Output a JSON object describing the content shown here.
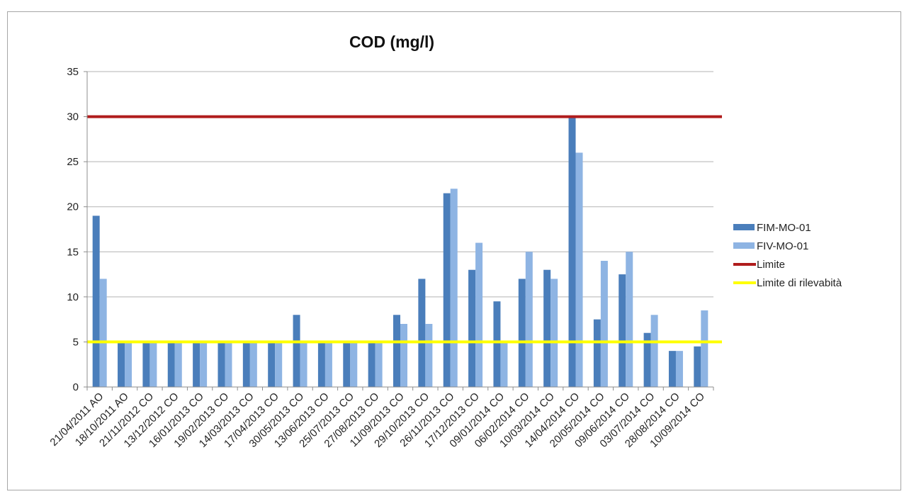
{
  "chart_data": {
    "type": "bar",
    "title": "COD (mg/l)",
    "xlabel": "",
    "ylabel": "",
    "ylim": [
      0,
      35
    ],
    "yticks": [
      0,
      5,
      10,
      15,
      20,
      25,
      30,
      35
    ],
    "grid": true,
    "legend_position": "right",
    "categories": [
      "21/04/2011 AO",
      "18/10/2011 AO",
      "21/11/2012 CO",
      "13/12/2012 CO",
      "16/01/2013 CO",
      "19/02/2013 CO",
      "14/03/2013 CO",
      "17/04/2013 CO",
      "30/05/2013 CO",
      "13/06/2013 CO",
      "25/07/2013 CO",
      "27/08/2013 CO",
      "11/09/2013 CO",
      "29/10/2013 CO",
      "26/11/2013 CO",
      "17/12/2013 CO",
      "09/01/2014 CO",
      "06/02/2014 CO",
      "10/03/2014 CO",
      "14/04/2014 CO",
      "20/05/2014 CO",
      "09/06/2014 CO",
      "03/07/2014 CO",
      "28/08/2014 CO",
      "10/09/2014 CO"
    ],
    "series": [
      {
        "name": "FIM-MO-01",
        "kind": "bar",
        "color": "#4a7ebb",
        "values": [
          19,
          5,
          5,
          5,
          5,
          5,
          5,
          5,
          8,
          5,
          5,
          5,
          8,
          12,
          21.5,
          13,
          9.5,
          12,
          13,
          30,
          7.5,
          12.5,
          6,
          4,
          4.5
        ]
      },
      {
        "name": "FIV-MO-01",
        "kind": "bar",
        "color": "#8eb4e3",
        "values": [
          12,
          5,
          5,
          5,
          5,
          5,
          5,
          5,
          5,
          5,
          5,
          5,
          7,
          7,
          22,
          16,
          5,
          15,
          12,
          26,
          14,
          15,
          8,
          4,
          8.5
        ]
      },
      {
        "name": "Limite",
        "kind": "hline",
        "color": "#b01c1c",
        "value": 30
      },
      {
        "name": "Limite di rilevabità",
        "kind": "hline",
        "color": "#ffff00",
        "value": 5
      }
    ]
  }
}
